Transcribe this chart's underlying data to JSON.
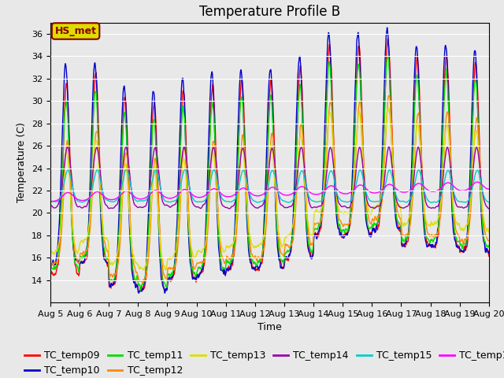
{
  "title": "Temperature Profile B",
  "xlabel": "Time",
  "ylabel": "Temperature (C)",
  "ylim": [
    12,
    37
  ],
  "n_days": 15,
  "x_tick_labels": [
    "Aug 5",
    "Aug 6",
    "Aug 7",
    "Aug 8",
    "Aug 9",
    "Aug 10",
    "Aug 11",
    "Aug 12",
    "Aug 13",
    "Aug 14",
    "Aug 15",
    "Aug 16",
    "Aug 17",
    "Aug 18",
    "Aug 19",
    "Aug 20"
  ],
  "series_colors": {
    "TC_temp09": "#ff0000",
    "TC_temp10": "#0000cc",
    "TC_temp11": "#00dd00",
    "TC_temp12": "#ff8800",
    "TC_temp13": "#dddd00",
    "TC_temp14": "#9900aa",
    "TC_temp15": "#00cccc",
    "TC_temp16": "#ff00ff"
  },
  "annotation_text": "HS_met",
  "annotation_color": "#880000",
  "annotation_bg": "#dddd00",
  "fig_bg": "#e8e8e8",
  "plot_bg": "#e8e8e8",
  "title_fontsize": 12,
  "axis_fontsize": 9,
  "tick_fontsize": 8,
  "legend_fontsize": 9,
  "yticks": [
    14,
    16,
    18,
    20,
    22,
    24,
    26,
    28,
    30,
    32,
    34,
    36
  ]
}
